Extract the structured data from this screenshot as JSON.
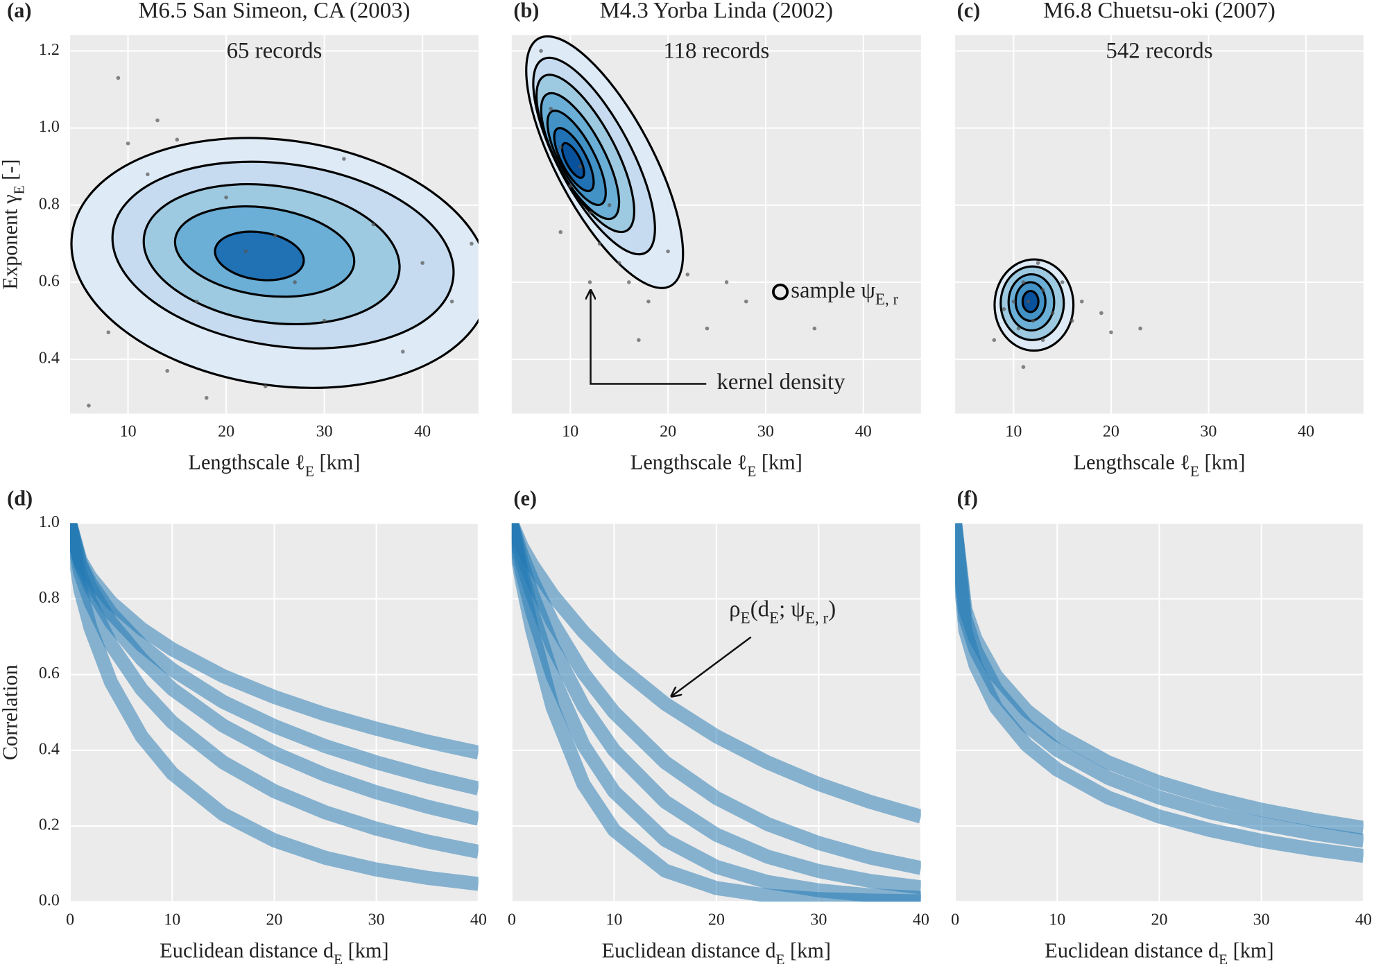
{
  "chart_data": [
    {
      "type": "scatter",
      "panel_label": "(a)",
      "title": "M6.5 San Simeon, CA (2003)",
      "annotation": "65 records",
      "x_label": [
        "Lengthscale ℓ",
        "E",
        " [km]"
      ],
      "y_label": [
        "Exponent γ",
        "E",
        " [-]"
      ],
      "xlim": [
        4.1,
        45.7
      ],
      "ylim": [
        0.259,
        1.241
      ],
      "xticks": [
        10,
        20,
        30,
        40
      ],
      "yticks": [
        0.4,
        0.6,
        0.8,
        {
          "value": 1,
          "label": "1.0"
        },
        1.2
      ],
      "ytick_labels": true,
      "grid": true,
      "color": "#555555",
      "x": [
        6,
        8,
        10,
        12,
        13,
        15,
        17,
        14,
        18,
        20,
        22,
        25,
        27,
        30,
        32,
        35,
        38,
        40,
        43,
        45,
        24,
        9
      ],
      "values": [
        0.28,
        0.47,
        0.96,
        0.88,
        1.02,
        0.97,
        0.55,
        0.37,
        0.3,
        0.82,
        0.68,
        0.72,
        0.6,
        0.5,
        0.92,
        0.75,
        0.42,
        0.65,
        0.55,
        0.7,
        0.33,
        1.13
      ]
    },
    {
      "type": "scatter",
      "panel_label": "(b)",
      "title": "M4.3 Yorba Linda (2002)",
      "annotation": "118 records",
      "x_label": [
        "Lengthscale ℓ",
        "E",
        " [km]"
      ],
      "xlim": [
        4.0,
        45.9
      ],
      "ylim": [
        0.259,
        1.241
      ],
      "xticks": [
        10,
        20,
        30,
        40
      ],
      "yticks": [
        0.4,
        0.6,
        0.8,
        1,
        1.2
      ],
      "ytick_labels": false,
      "grid": true,
      "color": "#555555",
      "x": [
        7,
        8,
        9,
        10,
        11,
        12,
        13,
        14,
        15,
        16,
        18,
        20,
        22,
        24,
        26,
        28,
        12,
        9,
        17,
        35
      ],
      "values": [
        1.2,
        1.05,
        0.95,
        0.85,
        0.9,
        0.78,
        0.7,
        0.8,
        0.65,
        0.6,
        0.55,
        0.68,
        0.62,
        0.48,
        0.6,
        0.55,
        0.6,
        0.73,
        0.45,
        0.48
      ],
      "sample_point": {
        "x": 31.5,
        "y": 0.575
      },
      "sample_label": [
        "sample ψ",
        "E, r"
      ],
      "arrow_label": "kernel density"
    },
    {
      "type": "scatter",
      "panel_label": "(c)",
      "title": "M6.8 Chuetsu-oki (2007)",
      "annotation": "542 records",
      "x_label": [
        "Lengthscale ℓ",
        "E",
        " [km]"
      ],
      "xlim": [
        4.0,
        45.9
      ],
      "ylim": [
        0.259,
        1.241
      ],
      "xticks": [
        10,
        20,
        30,
        40
      ],
      "yticks": [
        0.4,
        0.6,
        0.8,
        1,
        1.2
      ],
      "ytick_labels": false,
      "grid": true,
      "color": "#555555",
      "x": [
        10,
        11,
        12,
        11.5,
        13,
        10.5,
        12.5,
        9,
        14,
        15,
        8,
        17,
        20,
        23,
        11,
        13,
        16,
        19
      ],
      "values": [
        0.55,
        0.6,
        0.5,
        0.55,
        0.58,
        0.48,
        0.65,
        0.53,
        0.52,
        0.6,
        0.45,
        0.55,
        0.47,
        0.48,
        0.38,
        0.45,
        0.5,
        0.52
      ]
    },
    {
      "type": "line",
      "panel_label": "(d)",
      "y_label": [
        "Correlation"
      ],
      "x_label": [
        "Euclidean distance d",
        "E",
        " [km]"
      ],
      "xlim": [
        0,
        40
      ],
      "ylim": [
        0,
        1
      ],
      "xticks": [
        0,
        10,
        20,
        30,
        40
      ],
      "yticks": [
        {
          "value": 0,
          "label": "0.0"
        },
        0.2,
        0.4,
        0.6,
        0.8,
        {
          "value": 1,
          "label": "1.0"
        }
      ],
      "ytick_labels": true,
      "grid": true,
      "color": "#1f77b4",
      "x": [
        0,
        1,
        2,
        4,
        7,
        10,
        15,
        20,
        25,
        30,
        35,
        40
      ],
      "series": [
        {
          "values": [
            1,
            0.903,
            0.857,
            0.791,
            0.721,
            0.667,
            0.596,
            0.541,
            0.495,
            0.457,
            0.423,
            0.394
          ]
        },
        {
          "values": [
            1,
            0.896,
            0.842,
            0.763,
            0.678,
            0.613,
            0.528,
            0.464,
            0.411,
            0.368,
            0.331,
            0.299
          ]
        },
        {
          "values": [
            1,
            0.891,
            0.83,
            0.738,
            0.641,
            0.562,
            0.465,
            0.393,
            0.335,
            0.289,
            0.251,
            0.219
          ]
        },
        {
          "values": [
            1,
            0.868,
            0.791,
            0.68,
            0.561,
            0.474,
            0.368,
            0.292,
            0.236,
            0.193,
            0.159,
            0.132
          ]
        },
        {
          "values": [
            1,
            0.825,
            0.723,
            0.58,
            0.437,
            0.339,
            0.231,
            0.162,
            0.116,
            0.085,
            0.063,
            0.047
          ]
        }
      ]
    },
    {
      "type": "line",
      "panel_label": "(e)",
      "x_label": [
        "Euclidean distance d",
        "E",
        " [km]"
      ],
      "xlim": [
        0,
        40
      ],
      "ylim": [
        0,
        1
      ],
      "xticks": [
        0,
        10,
        20,
        30,
        40
      ],
      "yticks": [
        0,
        0.2,
        0.4,
        0.6,
        0.8,
        1
      ],
      "ytick_labels": false,
      "grid": true,
      "color": "#1f77b4",
      "annotation_label": [
        "ρ",
        "E",
        "(d",
        "E",
        "; ψ",
        "E, r",
        ")"
      ],
      "x": [
        0,
        1,
        2,
        4,
        7,
        10,
        15,
        20,
        25,
        30,
        35,
        40
      ],
      "series": [
        {
          "values": [
            1,
            0.937,
            0.89,
            0.81,
            0.713,
            0.632,
            0.523,
            0.437,
            0.368,
            0.311,
            0.264,
            0.225
          ]
        },
        {
          "values": [
            1,
            0.916,
            0.85,
            0.738,
            0.604,
            0.5,
            0.368,
            0.274,
            0.205,
            0.155,
            0.117,
            0.089
          ]
        },
        {
          "values": [
            1,
            0.896,
            0.812,
            0.674,
            0.517,
            0.4,
            0.264,
            0.177,
            0.119,
            0.081,
            0.055,
            0.038
          ]
        },
        {
          "values": [
            1,
            0.87,
            0.765,
            0.596,
            0.414,
            0.291,
            0.163,
            0.092,
            0.052,
            0.03,
            0.017,
            0.01
          ]
        },
        {
          "values": [
            1,
            0.846,
            0.717,
            0.513,
            0.311,
            0.189,
            0.082,
            0.036,
            0.016,
            0.007,
            0.003,
            0.001
          ]
        }
      ]
    },
    {
      "type": "line",
      "panel_label": "(f)",
      "x_label": [
        "Euclidean distance d",
        "E",
        " [km]"
      ],
      "xlim": [
        0,
        40
      ],
      "ylim": [
        0,
        1
      ],
      "xticks": [
        0,
        10,
        20,
        30,
        40
      ],
      "yticks": [
        0,
        0.2,
        0.4,
        0.6,
        0.8,
        1
      ],
      "ytick_labels": false,
      "grid": true,
      "color": "#1f77b4",
      "x": [
        0,
        1,
        2,
        4,
        7,
        10,
        15,
        20,
        25,
        30,
        35,
        40
      ],
      "series": [
        {
          "values": [
            1,
            0.772,
            0.694,
            0.597,
            0.505,
            0.442,
            0.368,
            0.315,
            0.275,
            0.243,
            0.217,
            0.195
          ]
        },
        {
          "values": [
            1,
            0.749,
            0.665,
            0.561,
            0.466,
            0.401,
            0.327,
            0.275,
            0.236,
            0.206,
            0.181,
            0.161
          ]
        },
        {
          "values": [
            1,
            0.717,
            0.624,
            0.513,
            0.414,
            0.349,
            0.275,
            0.225,
            0.189,
            0.161,
            0.139,
            0.121
          ]
        }
      ]
    }
  ]
}
